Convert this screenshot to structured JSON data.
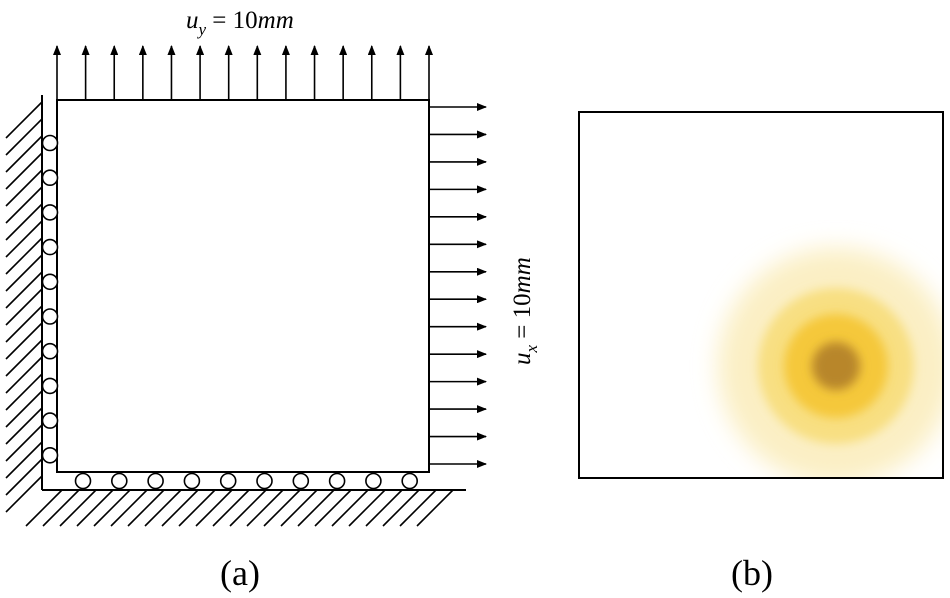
{
  "panel_a": {
    "caption": "(a)",
    "load_top": {
      "symbol": "u",
      "subscript": "y",
      "value": " = 10",
      "unit": "mm"
    },
    "load_right": {
      "symbol": "u",
      "subscript": "x",
      "value": " = 10",
      "unit": "mm"
    },
    "arrows_top_count": 14,
    "arrows_right_count": 14,
    "rollers_left_count": 10,
    "rollers_bottom_count": 10
  },
  "panel_b": {
    "caption": "(b)",
    "colors": {
      "core": "#b8862c",
      "inner": "#f5c83a",
      "middle": "#f8df82",
      "outer": "#fbefc4"
    }
  }
}
